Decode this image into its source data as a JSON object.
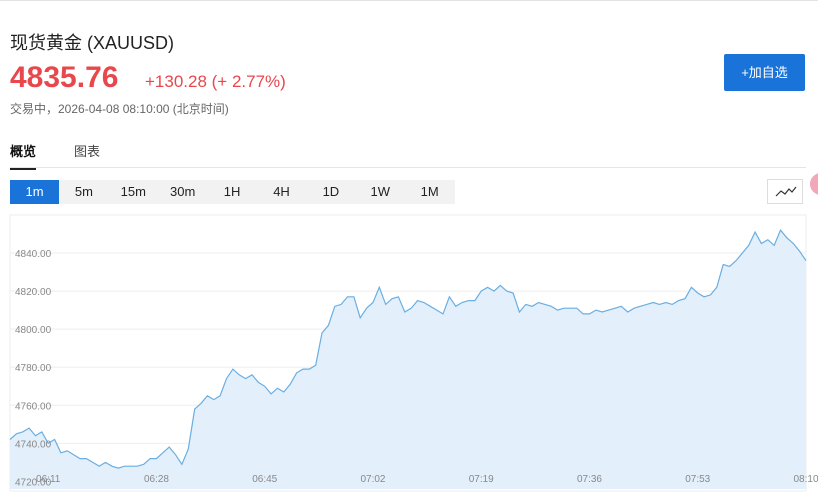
{
  "header": {
    "instrument": "现货黄金 (XAUUSD)",
    "price": "4835.76",
    "change": "+130.28 (+ 2.77%)",
    "status": "交易中，2026-04-08 08:10:00 (北京时间)",
    "button": "+加自选"
  },
  "tabs": [
    "概览",
    "图表"
  ],
  "timeframes": [
    "1m",
    "5m",
    "15m",
    "30m",
    "1H",
    "4H",
    "1D",
    "1W",
    "1M"
  ],
  "chart_data": {
    "type": "area",
    "categories": [
      null,
      null,
      null,
      null,
      null,
      null,
      "06:11",
      null,
      null,
      null,
      null,
      null,
      null,
      null,
      null,
      null,
      null,
      null,
      null,
      null,
      null,
      null,
      null,
      "06:28",
      null,
      null,
      null,
      null,
      null,
      null,
      null,
      null,
      null,
      null,
      null,
      null,
      null,
      null,
      null,
      null,
      "06:45",
      null,
      null,
      null,
      null,
      null,
      null,
      null,
      null,
      null,
      null,
      null,
      null,
      null,
      null,
      null,
      null,
      "07:02",
      null,
      null,
      null,
      null,
      null,
      null,
      null,
      null,
      null,
      null,
      null,
      null,
      null,
      null,
      null,
      null,
      "07:19",
      null,
      null,
      null,
      null,
      null,
      null,
      null,
      null,
      null,
      null,
      null,
      null,
      null,
      null,
      null,
      null,
      "07:36",
      null,
      null,
      null,
      null,
      null,
      null,
      null,
      null,
      null,
      null,
      null,
      null,
      null,
      null,
      null,
      null,
      "07:53",
      null,
      null,
      null,
      null,
      null,
      null,
      null,
      null,
      null,
      null,
      null,
      null,
      null,
      null,
      null,
      null,
      "08:10"
    ],
    "values": [
      4742,
      4745,
      4746,
      4748,
      4744,
      4746,
      4740,
      4742,
      4735,
      4736,
      4734,
      4732,
      4732,
      4730,
      4728,
      4730,
      4728,
      4727,
      4728,
      4728,
      4728,
      4729,
      4732,
      4732,
      4735,
      4738,
      4734,
      4729,
      4737,
      4758,
      4761,
      4765,
      4763,
      4765,
      4774,
      4779,
      4776,
      4774,
      4776,
      4772,
      4770,
      4766,
      4769,
      4767,
      4771,
      4777,
      4779,
      4779,
      4781,
      4798,
      4802,
      4812,
      4813,
      4817,
      4817,
      4806,
      4811,
      4814,
      4822,
      4813,
      4816,
      4817,
      4809,
      4811,
      4815,
      4814,
      4812,
      4810,
      4808,
      4817,
      4812,
      4814,
      4815,
      4815,
      4820,
      4822,
      4820,
      4823,
      4820,
      4819,
      4809,
      4813,
      4812,
      4814,
      4813,
      4812,
      4810,
      4811,
      4811,
      4811,
      4808,
      4808,
      4810,
      4809,
      4810,
      4811,
      4812,
      4809,
      4811,
      4812,
      4813,
      4814,
      4813,
      4814,
      4813,
      4815,
      4816,
      4822,
      4819,
      4817,
      4818,
      4822,
      4834,
      4833,
      4836,
      4840,
      4844,
      4851,
      4845,
      4847,
      4844,
      4852,
      4848,
      4845,
      4841,
      4836
    ],
    "color": "#6aaee2",
    "ylim": [
      4716,
      4860
    ],
    "yticks": [
      {
        "value": 4720,
        "label": "4720.00"
      },
      {
        "value": 4740,
        "label": "4740.00"
      },
      {
        "value": 4760,
        "label": "4760.00"
      },
      {
        "value": 4780,
        "label": "4780.00"
      },
      {
        "value": 4800,
        "label": "4800.00"
      },
      {
        "value": 4820,
        "label": "4820.00"
      },
      {
        "value": 4840,
        "label": "4840.00"
      }
    ],
    "grid": true
  }
}
